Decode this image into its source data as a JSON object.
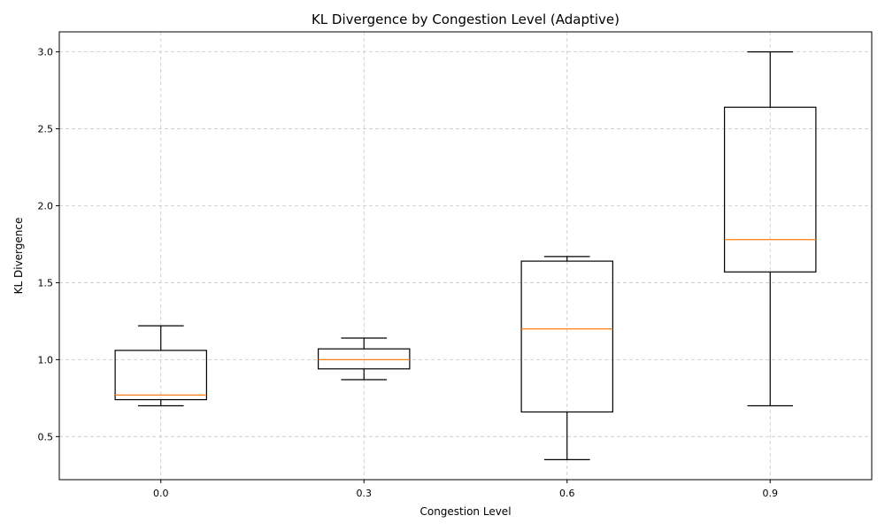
{
  "chart_data": {
    "type": "boxplot",
    "title": "KL Divergence by Congestion Level (Adaptive)",
    "xlabel": "Congestion Level",
    "ylabel": "KL Divergence",
    "ylim": [
      0.22,
      3.13
    ],
    "yticks": [
      0.5,
      1.0,
      1.5,
      2.0,
      2.5,
      3.0
    ],
    "ytick_labels": [
      "0.5",
      "1.0",
      "1.5",
      "2.0",
      "2.5",
      "3.0"
    ],
    "grid": true,
    "categories": [
      "0.0",
      "0.3",
      "0.6",
      "0.9"
    ],
    "boxes": [
      {
        "whisker_low": 0.7,
        "q1": 0.74,
        "median": 0.77,
        "q3": 1.06,
        "whisker_high": 1.22
      },
      {
        "whisker_low": 0.87,
        "q1": 0.94,
        "median": 1.0,
        "q3": 1.07,
        "whisker_high": 1.14
      },
      {
        "whisker_low": 0.35,
        "q1": 0.66,
        "median": 1.2,
        "q3": 1.64,
        "whisker_high": 1.67
      },
      {
        "whisker_low": 0.7,
        "q1": 1.57,
        "median": 1.78,
        "q3": 2.64,
        "whisker_high": 3.0
      }
    ],
    "colors": {
      "box": "#000000",
      "median": "#ff7f0e",
      "grid": "#c8c8c8"
    }
  }
}
